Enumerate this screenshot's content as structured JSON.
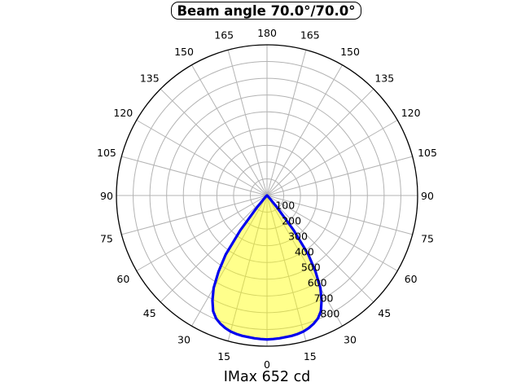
{
  "title": {
    "text": "Beam angle 70.0°/70.0°"
  },
  "footer": {
    "text": "IMax 652 cd"
  },
  "chart_data": {
    "type": "line",
    "projection": "polar",
    "title": "Beam angle 70.0°/70.0°",
    "annotation": "IMax 652 cd",
    "max_intensity_cd": 652,
    "beam_angle_c0_deg": 70.0,
    "beam_angle_c90_deg": 70.0,
    "zero_angle_position": "bottom",
    "angle_unit": "degrees",
    "angle_ticks": [
      0,
      15,
      30,
      45,
      60,
      75,
      90,
      105,
      120,
      135,
      150,
      165,
      180
    ],
    "angle_labels_mirrored_both_sides": true,
    "r_ticks": [
      100,
      200,
      300,
      400,
      500,
      600,
      700,
      800
    ],
    "r_max": 900,
    "r_label_ray_deg": 22.5,
    "grid": true,
    "legend": "none",
    "series": [
      {
        "name": "luminous-intensity-distribution",
        "symmetric": true,
        "angles_deg": [
          0,
          2.5,
          5,
          7.5,
          10,
          12.5,
          15,
          17.5,
          20,
          22.5,
          25,
          27.5,
          30,
          32.5,
          35,
          37.5,
          40,
          42.5,
          45,
          50,
          55,
          60,
          70,
          80,
          90
        ],
        "values": [
          860,
          858,
          856,
          853,
          851,
          847,
          841,
          830,
          815,
          795,
          762,
          706,
          638,
          540,
          430,
          262,
          95,
          28,
          12,
          5,
          3,
          2,
          1,
          0,
          0
        ]
      }
    ],
    "colors": {
      "curve": "#0000ee",
      "fill": "#ffff00",
      "fill_opacity": "0.45",
      "grid": "#b3b3b3",
      "outer_ring": "#000000",
      "text": "#000000",
      "background": "#ffffff"
    }
  }
}
